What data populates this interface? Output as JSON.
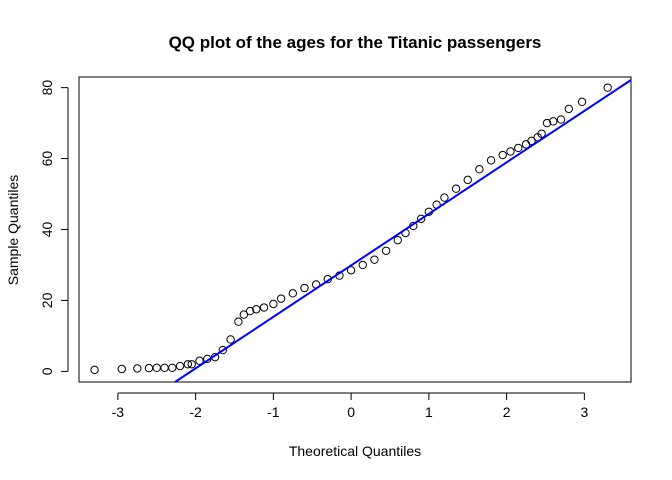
{
  "chart_data": {
    "type": "scatter",
    "title": "QQ plot of the ages for the Titanic passengers",
    "xlabel": "Theoretical Quantiles",
    "ylabel": "Sample Quantiles",
    "xlim": [
      -3.5,
      3.6
    ],
    "ylim": [
      -3,
      83
    ],
    "x_ticks": [
      -3,
      -2,
      -1,
      0,
      1,
      2,
      3
    ],
    "x_tick_labels": [
      "-3",
      "-2",
      "-1",
      "0",
      "1",
      "2",
      "3"
    ],
    "y_ticks": [
      0,
      20,
      40,
      60,
      80
    ],
    "y_tick_labels": [
      "0",
      "20",
      "40",
      "60",
      "80"
    ],
    "grid": false,
    "legend": "none",
    "series": [
      {
        "kind": "points",
        "marker": "open-circle",
        "color": "#000000",
        "x": [
          -3.3,
          -2.95,
          -2.75,
          -2.6,
          -2.5,
          -2.4,
          -2.3,
          -2.2,
          -2.1,
          -2.05,
          -1.95,
          -1.85,
          -1.75,
          -1.65,
          -1.55,
          -1.45,
          -1.38,
          -1.3,
          -1.22,
          -1.12,
          -1.0,
          -0.9,
          -0.75,
          -0.6,
          -0.45,
          -0.3,
          -0.15,
          0.0,
          0.15,
          0.3,
          0.45,
          0.6,
          0.7,
          0.8,
          0.9,
          1.0,
          1.1,
          1.2,
          1.35,
          1.5,
          1.65,
          1.8,
          1.95,
          2.05,
          2.15,
          2.25,
          2.32,
          2.4,
          2.45,
          2.52,
          2.6,
          2.7,
          2.8,
          2.97,
          3.3
        ],
        "y": [
          0.42,
          0.67,
          0.83,
          0.92,
          1,
          1,
          1,
          1.5,
          2,
          2,
          3,
          3.5,
          4,
          6,
          9,
          14,
          16,
          17,
          17.5,
          18,
          19,
          20.5,
          22,
          23.5,
          24.5,
          26,
          27,
          28.5,
          30,
          31.5,
          34,
          37,
          39,
          41,
          43,
          45,
          47,
          49,
          51.5,
          54,
          57,
          59.5,
          61,
          62,
          63,
          64,
          65,
          66,
          67,
          70,
          70.5,
          71,
          74,
          76,
          80
        ]
      },
      {
        "kind": "reference-line",
        "color": "#0000ff",
        "slope": 14.52,
        "intercept": 29.88
      }
    ]
  }
}
